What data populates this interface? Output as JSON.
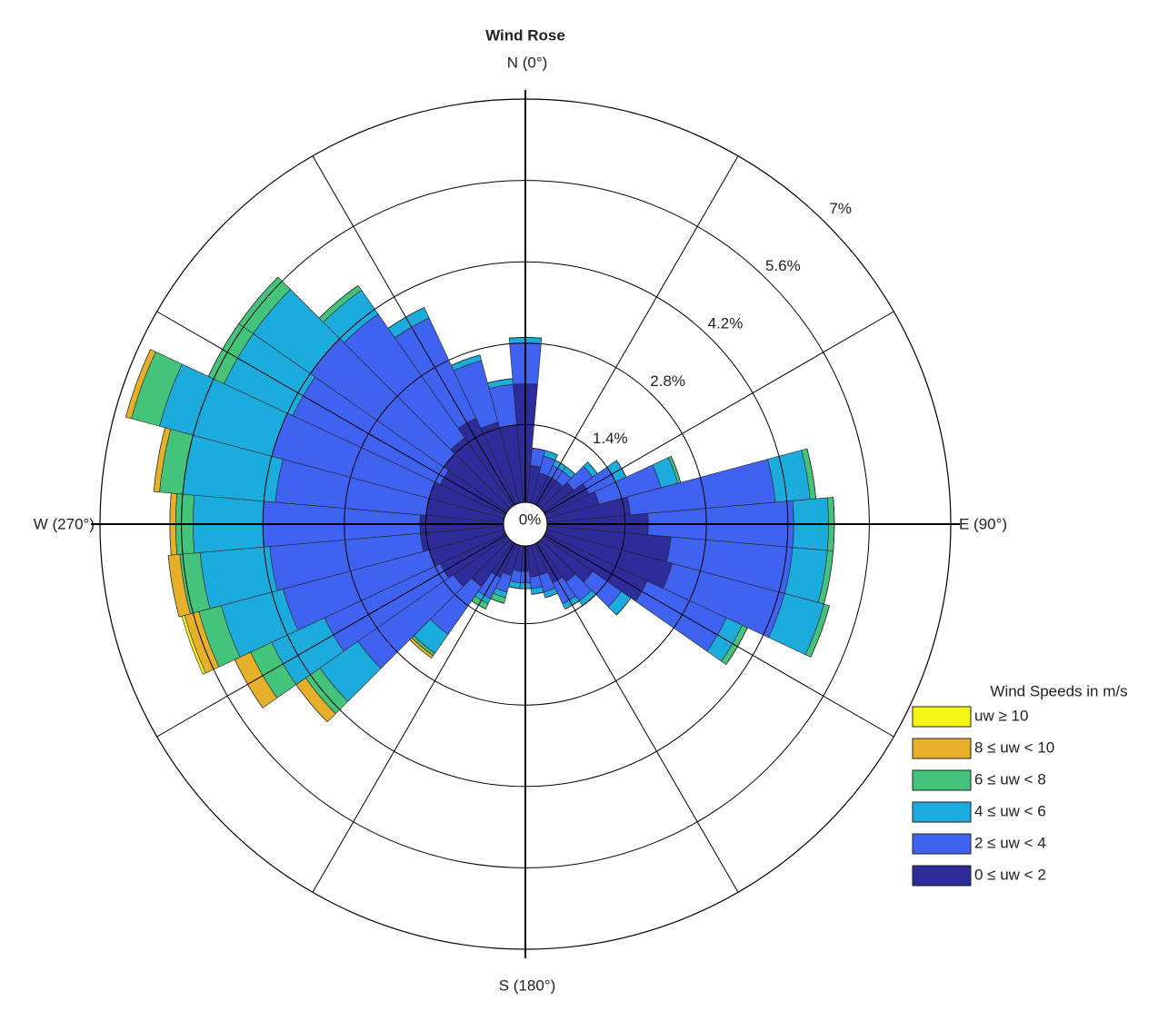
{
  "chart_data": {
    "type": "windrose",
    "title": "Wind Rose",
    "direction_labels": [
      "N (0°)",
      "E (90°)",
      "S (180°)",
      "W (270°)"
    ],
    "legend_title": "Wind Speeds in m/s",
    "x": [
      0,
      10,
      20,
      30,
      40,
      50,
      60,
      70,
      80,
      90,
      100,
      110,
      120,
      130,
      140,
      150,
      160,
      170,
      180,
      190,
      200,
      210,
      220,
      230,
      240,
      250,
      260,
      270,
      280,
      290,
      300,
      310,
      320,
      330,
      340,
      350
    ],
    "rlim": [
      0,
      7
    ],
    "rticks": [
      {
        "value": 0,
        "label": "0%"
      },
      {
        "value": 1.4,
        "label": "1.4%"
      },
      {
        "value": 2.8,
        "label": "2.8%"
      },
      {
        "value": 4.2,
        "label": "4.2%"
      },
      {
        "value": 5.6,
        "label": "5.6%"
      },
      {
        "value": 7,
        "label": "7%"
      }
    ],
    "series": [
      {
        "name": "0 ≤ uw < 2",
        "color": "#2e2b9b",
        "values": [
          2.1,
          0.7,
          0.6,
          0.6,
          0.6,
          0.7,
          0.9,
          1.0,
          1.5,
          1.8,
          2.2,
          2.3,
          2.0,
          1.1,
          0.9,
          0.8,
          0.6,
          0.6,
          0.5,
          0.5,
          0.6,
          0.7,
          1.0,
          1.2,
          1.3,
          1.4,
          1.5,
          1.5,
          1.4,
          1.4,
          1.3,
          1.4,
          1.5,
          1.7,
          1.5,
          1.4
        ]
      },
      {
        "name": "2 ≤ uw < 4",
        "color": "#3f63f0",
        "values": [
          0.7,
          0.3,
          0.3,
          0.2,
          0.2,
          0.4,
          0.5,
          1.1,
          2.5,
          2.5,
          2.1,
          2.0,
          1.5,
          0.6,
          0.4,
          0.4,
          0.3,
          0.2,
          0.2,
          0.2,
          0.3,
          0.4,
          1.0,
          2.0,
          2.2,
          2.6,
          2.6,
          2.7,
          2.6,
          2.8,
          2.8,
          2.8,
          2.6,
          1.9,
          1.1,
          0.7
        ]
      },
      {
        "name": "4 ≤ uw < 6",
        "color": "#1babdc",
        "values": [
          0.1,
          0,
          0.1,
          0.1,
          0.1,
          0.1,
          0.2,
          0.3,
          0.6,
          0.6,
          0.6,
          0.7,
          0.3,
          0.2,
          0.1,
          0.1,
          0.1,
          0.1,
          0.1,
          0.1,
          0.1,
          0.1,
          0.4,
          0.8,
          1.0,
          1.1,
          1.2,
          1.2,
          1.6,
          2.0,
          1.3,
          1.2,
          0.5,
          0.2,
          0.1,
          0.1
        ]
      },
      {
        "name": "6 ≤ uw < 8",
        "color": "#44c47b",
        "values": [
          0,
          0,
          0,
          0,
          0,
          0,
          0,
          0.05,
          0.1,
          0.1,
          0.1,
          0.1,
          0.1,
          0,
          0,
          0,
          0,
          0,
          0,
          0,
          0.1,
          0.1,
          0.05,
          0.3,
          0.4,
          0.4,
          0.35,
          0.3,
          0.4,
          0.5,
          0.3,
          0.3,
          0.1,
          0,
          0,
          0
        ]
      },
      {
        "name": "8 ≤ uw < 10",
        "color": "#e6b02a",
        "values": [
          0,
          0,
          0,
          0,
          0,
          0,
          0,
          0,
          0,
          0,
          0,
          0,
          0,
          0,
          0,
          0,
          0,
          0,
          0,
          0,
          0,
          0,
          0.05,
          0.2,
          0.3,
          0.25,
          0.2,
          0.1,
          0.1,
          0.1,
          0,
          0,
          0,
          0,
          0,
          0
        ]
      },
      {
        "name": "uw ≥ 10",
        "color": "#f5f514",
        "values": [
          0,
          0,
          0,
          0,
          0,
          0,
          0,
          0,
          0,
          0,
          0,
          0,
          0,
          0,
          0,
          0,
          0,
          0,
          0,
          0,
          0,
          0,
          0,
          0,
          0,
          0.05,
          0,
          0,
          0,
          0,
          0,
          0,
          0,
          0,
          0,
          0
        ]
      }
    ]
  }
}
